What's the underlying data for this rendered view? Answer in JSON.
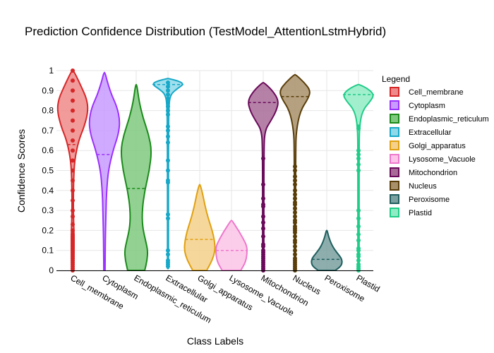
{
  "chart_data": {
    "type": "violin",
    "title": "Prediction Confidence Distribution (TestModel_AttentionLstmHybrid)",
    "xlabel": "Class Labels",
    "ylabel": "Confidence Scores",
    "ylim": [
      0,
      1
    ],
    "yticks": [
      0,
      0.1,
      0.2,
      0.3,
      0.4,
      0.5,
      0.6,
      0.7,
      0.8,
      0.9,
      1
    ],
    "ytick_labels": [
      "0",
      "0.1",
      "0.2",
      "0.3",
      "0.4",
      "0.5",
      "0.6",
      "0.7",
      "0.8",
      "0.9",
      "1"
    ],
    "grid": true,
    "legend_title": "Legend",
    "legend_position": "right",
    "categories": [
      "Cell_membrane",
      "Cytoplasm",
      "Endoplasmic_reticulum",
      "Extracellular",
      "Golgi_apparatus",
      "Lysosome_Vacuole",
      "Mitochondrion",
      "Nucleus",
      "Peroxisome",
      "Plastid"
    ],
    "series": [
      {
        "name": "Cell_membrane",
        "color": "#d62728",
        "fill": "#ef8a8a",
        "mean": 0.63,
        "range": [
          0,
          1
        ],
        "profile": [
          [
            0,
            0.07
          ],
          [
            0.08,
            0.08
          ],
          [
            0.16,
            0.09
          ],
          [
            0.25,
            0.06
          ],
          [
            0.33,
            0.04
          ],
          [
            0.45,
            0.06
          ],
          [
            0.55,
            0.12
          ],
          [
            0.65,
            0.38
          ],
          [
            0.72,
            0.75
          ],
          [
            0.8,
            1.0
          ],
          [
            0.86,
            0.9
          ],
          [
            0.92,
            0.55
          ],
          [
            0.97,
            0.25
          ],
          [
            1,
            0.04
          ]
        ],
        "points": [
          0,
          0.01,
          0.02,
          0.03,
          0.04,
          0.05,
          0.06,
          0.07,
          0.08,
          0.09,
          0.1,
          0.11,
          0.12,
          0.13,
          0.14,
          0.15,
          0.16,
          0.17,
          0.18,
          0.2,
          0.23,
          0.27,
          0.3,
          0.35,
          0.4,
          0.45,
          0.5,
          0.55,
          0.6,
          0.65,
          0.7,
          0.75,
          0.8,
          0.85,
          0.9,
          0.95,
          1.0
        ]
      },
      {
        "name": "Cytoplasm",
        "color": "#9b30ff",
        "fill": "#c89bff",
        "mean": 0.58,
        "range": [
          0,
          0.99
        ],
        "profile": [
          [
            0,
            0.04
          ],
          [
            0.1,
            0.05
          ],
          [
            0.2,
            0.07
          ],
          [
            0.3,
            0.1
          ],
          [
            0.4,
            0.14
          ],
          [
            0.5,
            0.25
          ],
          [
            0.6,
            0.55
          ],
          [
            0.68,
            0.9
          ],
          [
            0.75,
            1.0
          ],
          [
            0.82,
            0.8
          ],
          [
            0.88,
            0.45
          ],
          [
            0.94,
            0.2
          ],
          [
            0.99,
            0.04
          ]
        ],
        "points": []
      },
      {
        "name": "Endoplasmic_reticulum",
        "color": "#1a8a1a",
        "fill": "#7fc97f",
        "mean": 0.41,
        "range": [
          0,
          0.93
        ],
        "profile": [
          [
            0,
            0.55
          ],
          [
            0.05,
            0.7
          ],
          [
            0.1,
            0.75
          ],
          [
            0.15,
            0.6
          ],
          [
            0.22,
            0.4
          ],
          [
            0.3,
            0.38
          ],
          [
            0.4,
            0.55
          ],
          [
            0.5,
            0.85
          ],
          [
            0.6,
            1.0
          ],
          [
            0.68,
            0.8
          ],
          [
            0.76,
            0.45
          ],
          [
            0.84,
            0.2
          ],
          [
            0.93,
            0.04
          ]
        ],
        "points": []
      },
      {
        "name": "Extracellular",
        "color": "#17a8c8",
        "fill": "#8fd9ea",
        "mean": 0.93,
        "range": [
          0.01,
          0.96
        ],
        "profile": [
          [
            0.01,
            0.03
          ],
          [
            0.1,
            0.03
          ],
          [
            0.3,
            0.03
          ],
          [
            0.5,
            0.03
          ],
          [
            0.7,
            0.04
          ],
          [
            0.82,
            0.06
          ],
          [
            0.88,
            0.15
          ],
          [
            0.91,
            0.6
          ],
          [
            0.93,
            1.0
          ],
          [
            0.945,
            0.8
          ],
          [
            0.96,
            0.05
          ]
        ],
        "points": [
          0.02,
          0.03,
          0.04,
          0.05,
          0.08,
          0.1,
          0.26,
          0.28,
          0.44,
          0.45,
          0.5,
          0.55,
          0.64,
          0.67,
          0.7,
          0.72,
          0.78,
          0.8,
          0.82,
          0.84,
          0.86,
          0.88,
          0.9,
          0.92,
          0.94
        ]
      },
      {
        "name": "Golgi_apparatus",
        "color": "#e0a010",
        "fill": "#f5d08a",
        "mean": 0.155,
        "range": [
          0,
          0.43
        ],
        "profile": [
          [
            0,
            0.45
          ],
          [
            0.05,
            0.8
          ],
          [
            0.1,
            1.0
          ],
          [
            0.15,
            0.95
          ],
          [
            0.2,
            0.8
          ],
          [
            0.26,
            0.55
          ],
          [
            0.32,
            0.35
          ],
          [
            0.38,
            0.2
          ],
          [
            0.43,
            0.03
          ]
        ],
        "points": []
      },
      {
        "name": "Lysosome_Vacuole",
        "color": "#ee77cc",
        "fill": "#fbc4e8",
        "mean": 0.1,
        "range": [
          0,
          0.25
        ],
        "profile": [
          [
            0,
            0.6
          ],
          [
            0.04,
            0.9
          ],
          [
            0.08,
            1.0
          ],
          [
            0.12,
            1.0
          ],
          [
            0.16,
            0.75
          ],
          [
            0.2,
            0.45
          ],
          [
            0.23,
            0.2
          ],
          [
            0.25,
            0.03
          ]
        ],
        "points": []
      },
      {
        "name": "Mitochondrion",
        "color": "#6a0a5a",
        "fill": "#a86b98",
        "mean": 0.84,
        "range": [
          0,
          0.94
        ],
        "profile": [
          [
            0,
            0.04
          ],
          [
            0.2,
            0.04
          ],
          [
            0.4,
            0.04
          ],
          [
            0.6,
            0.05
          ],
          [
            0.7,
            0.1
          ],
          [
            0.75,
            0.5
          ],
          [
            0.8,
            0.85
          ],
          [
            0.85,
            1.0
          ],
          [
            0.9,
            0.6
          ],
          [
            0.94,
            0.05
          ]
        ],
        "points": [
          0,
          0.01,
          0.02,
          0.03,
          0.04,
          0.05,
          0.06,
          0.07,
          0.08,
          0.09,
          0.1,
          0.12,
          0.13,
          0.17,
          0.21,
          0.24,
          0.27,
          0.32,
          0.33,
          0.36,
          0.43,
          0.56
        ]
      },
      {
        "name": "Nucleus",
        "color": "#5a3e0a",
        "fill": "#a8906a",
        "mean": 0.87,
        "range": [
          0,
          0.98
        ],
        "profile": [
          [
            0,
            0.04
          ],
          [
            0.2,
            0.04
          ],
          [
            0.4,
            0.04
          ],
          [
            0.6,
            0.05
          ],
          [
            0.7,
            0.08
          ],
          [
            0.8,
            0.35
          ],
          [
            0.86,
            0.85
          ],
          [
            0.9,
            1.0
          ],
          [
            0.94,
            0.6
          ],
          [
            0.98,
            0.05
          ]
        ],
        "points": [
          0,
          0.01,
          0.02,
          0.03,
          0.04,
          0.05,
          0.06,
          0.08,
          0.1,
          0.12,
          0.14,
          0.15,
          0.17,
          0.19,
          0.2,
          0.21,
          0.22,
          0.24,
          0.25,
          0.27,
          0.29,
          0.31,
          0.33,
          0.34,
          0.36,
          0.38,
          0.4,
          0.43,
          0.45,
          0.47,
          0.5,
          0.52
        ]
      },
      {
        "name": "Peroxisome",
        "color": "#1f5e5e",
        "fill": "#7aa0a0",
        "mean": 0.055,
        "range": [
          0,
          0.2
        ],
        "profile": [
          [
            0,
            0.55
          ],
          [
            0.02,
            0.9
          ],
          [
            0.04,
            1.0
          ],
          [
            0.06,
            0.95
          ],
          [
            0.08,
            0.75
          ],
          [
            0.11,
            0.45
          ],
          [
            0.14,
            0.25
          ],
          [
            0.17,
            0.12
          ],
          [
            0.2,
            0.03
          ]
        ],
        "points": []
      },
      {
        "name": "Plastid",
        "color": "#1fcc88",
        "fill": "#90ecc4",
        "mean": 0.88,
        "range": [
          0,
          0.93
        ],
        "profile": [
          [
            0,
            0.04
          ],
          [
            0.2,
            0.04
          ],
          [
            0.4,
            0.04
          ],
          [
            0.6,
            0.04
          ],
          [
            0.72,
            0.06
          ],
          [
            0.8,
            0.25
          ],
          [
            0.85,
            0.8
          ],
          [
            0.88,
            1.0
          ],
          [
            0.91,
            0.6
          ],
          [
            0.93,
            0.05
          ]
        ],
        "points": [
          0,
          0.01,
          0.02,
          0.03,
          0.05,
          0.07,
          0.08,
          0.1,
          0.11,
          0.15,
          0.18,
          0.22,
          0.26,
          0.3,
          0.5,
          0.53,
          0.56,
          0.58,
          0.6,
          0.71,
          0.72
        ]
      }
    ]
  }
}
